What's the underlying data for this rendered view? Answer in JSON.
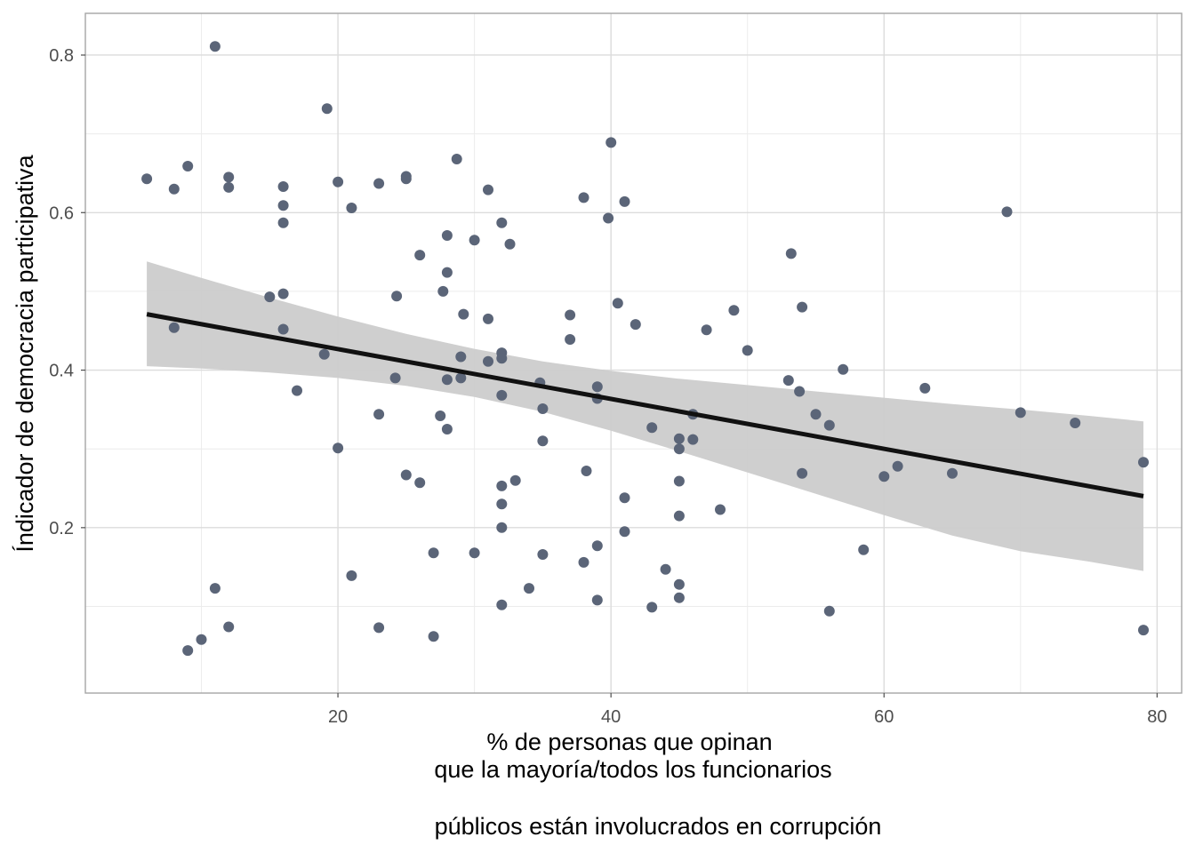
{
  "chart_data": {
    "type": "scatter",
    "title": "",
    "xlabel_lines": [
      "% de personas que opinan",
      "que la mayoría/todos  los funcionarios",
      "",
      "públicos están involucrados en corrupción"
    ],
    "ylabel": "Índicador de democracia participativa",
    "xlim": [
      1.5,
      81.8
    ],
    "ylim": [
      -0.01,
      0.853
    ],
    "x_major_ticks": [
      20,
      40,
      60,
      80
    ],
    "x_tick_labels": [
      "20",
      "40",
      "60",
      "80"
    ],
    "x_minor_ticks": [
      10,
      30,
      50,
      70
    ],
    "y_major_ticks": [
      0.2,
      0.4,
      0.6,
      0.8
    ],
    "y_tick_labels": [
      "0.2",
      "0.4",
      "0.6",
      "0.8"
    ],
    "y_minor_ticks": [
      0.1,
      0.3,
      0.5,
      0.7
    ],
    "grid": true,
    "colors": {
      "points": "#5b6578",
      "trend_line": "#111111",
      "confidence_band": "#cccccc",
      "grid": "#dcdcdc",
      "panel_border": "#a6a6a6"
    },
    "points": [
      {
        "x": 6,
        "y": 0.643
      },
      {
        "x": 8,
        "y": 0.63
      },
      {
        "x": 8,
        "y": 0.454
      },
      {
        "x": 9,
        "y": 0.659
      },
      {
        "x": 9,
        "y": 0.044
      },
      {
        "x": 10,
        "y": 0.058
      },
      {
        "x": 11,
        "y": 0.811
      },
      {
        "x": 11,
        "y": 0.123
      },
      {
        "x": 12,
        "y": 0.645
      },
      {
        "x": 12,
        "y": 0.632
      },
      {
        "x": 12,
        "y": 0.074
      },
      {
        "x": 15,
        "y": 0.493
      },
      {
        "x": 16,
        "y": 0.633
      },
      {
        "x": 16,
        "y": 0.609
      },
      {
        "x": 16,
        "y": 0.587
      },
      {
        "x": 16,
        "y": 0.497
      },
      {
        "x": 16,
        "y": 0.452
      },
      {
        "x": 17,
        "y": 0.374
      },
      {
        "x": 19,
        "y": 0.42
      },
      {
        "x": 19.2,
        "y": 0.732
      },
      {
        "x": 20,
        "y": 0.639
      },
      {
        "x": 20,
        "y": 0.301
      },
      {
        "x": 21,
        "y": 0.606
      },
      {
        "x": 21,
        "y": 0.139
      },
      {
        "x": 23,
        "y": 0.637
      },
      {
        "x": 23,
        "y": 0.344
      },
      {
        "x": 23,
        "y": 0.073
      },
      {
        "x": 24.2,
        "y": 0.39
      },
      {
        "x": 24.3,
        "y": 0.494
      },
      {
        "x": 25,
        "y": 0.646
      },
      {
        "x": 25,
        "y": 0.643
      },
      {
        "x": 25,
        "y": 0.267
      },
      {
        "x": 26,
        "y": 0.546
      },
      {
        "x": 26,
        "y": 0.257
      },
      {
        "x": 27,
        "y": 0.168
      },
      {
        "x": 27,
        "y": 0.062
      },
      {
        "x": 27.5,
        "y": 0.342
      },
      {
        "x": 27.7,
        "y": 0.5
      },
      {
        "x": 28,
        "y": 0.571
      },
      {
        "x": 28,
        "y": 0.524
      },
      {
        "x": 28,
        "y": 0.388
      },
      {
        "x": 28,
        "y": 0.325
      },
      {
        "x": 28.7,
        "y": 0.668
      },
      {
        "x": 29,
        "y": 0.417
      },
      {
        "x": 29,
        "y": 0.39
      },
      {
        "x": 29.2,
        "y": 0.471
      },
      {
        "x": 30,
        "y": 0.565
      },
      {
        "x": 30,
        "y": 0.168
      },
      {
        "x": 31,
        "y": 0.629
      },
      {
        "x": 31,
        "y": 0.465
      },
      {
        "x": 31,
        "y": 0.411
      },
      {
        "x": 32,
        "y": 0.587
      },
      {
        "x": 32,
        "y": 0.422
      },
      {
        "x": 32,
        "y": 0.415
      },
      {
        "x": 32,
        "y": 0.368
      },
      {
        "x": 32,
        "y": 0.253
      },
      {
        "x": 32,
        "y": 0.23
      },
      {
        "x": 32,
        "y": 0.2
      },
      {
        "x": 32,
        "y": 0.102
      },
      {
        "x": 32.6,
        "y": 0.56
      },
      {
        "x": 33,
        "y": 0.26
      },
      {
        "x": 34,
        "y": 0.123
      },
      {
        "x": 34.8,
        "y": 0.384
      },
      {
        "x": 35,
        "y": 0.351
      },
      {
        "x": 35,
        "y": 0.31
      },
      {
        "x": 35,
        "y": 0.166
      },
      {
        "x": 37,
        "y": 0.47
      },
      {
        "x": 37,
        "y": 0.439
      },
      {
        "x": 38,
        "y": 0.619
      },
      {
        "x": 38,
        "y": 0.156
      },
      {
        "x": 38.2,
        "y": 0.272
      },
      {
        "x": 39,
        "y": 0.379
      },
      {
        "x": 39,
        "y": 0.364
      },
      {
        "x": 39,
        "y": 0.177
      },
      {
        "x": 39,
        "y": 0.108
      },
      {
        "x": 39.8,
        "y": 0.593
      },
      {
        "x": 40,
        "y": 0.689
      },
      {
        "x": 40.5,
        "y": 0.485
      },
      {
        "x": 41,
        "y": 0.614
      },
      {
        "x": 41,
        "y": 0.238
      },
      {
        "x": 41,
        "y": 0.195
      },
      {
        "x": 41.8,
        "y": 0.458
      },
      {
        "x": 43,
        "y": 0.327
      },
      {
        "x": 43,
        "y": 0.099
      },
      {
        "x": 44,
        "y": 0.147
      },
      {
        "x": 45,
        "y": 0.313
      },
      {
        "x": 45,
        "y": 0.3
      },
      {
        "x": 45,
        "y": 0.259
      },
      {
        "x": 45,
        "y": 0.215
      },
      {
        "x": 45,
        "y": 0.128
      },
      {
        "x": 45,
        "y": 0.111
      },
      {
        "x": 46,
        "y": 0.344
      },
      {
        "x": 46,
        "y": 0.312
      },
      {
        "x": 47,
        "y": 0.451
      },
      {
        "x": 48,
        "y": 0.223
      },
      {
        "x": 49,
        "y": 0.476
      },
      {
        "x": 50,
        "y": 0.425
      },
      {
        "x": 53,
        "y": 0.387
      },
      {
        "x": 53.2,
        "y": 0.548
      },
      {
        "x": 53.8,
        "y": 0.373
      },
      {
        "x": 54,
        "y": 0.48
      },
      {
        "x": 54,
        "y": 0.269
      },
      {
        "x": 55,
        "y": 0.344
      },
      {
        "x": 56,
        "y": 0.33
      },
      {
        "x": 56,
        "y": 0.094
      },
      {
        "x": 57,
        "y": 0.401
      },
      {
        "x": 58.5,
        "y": 0.172
      },
      {
        "x": 60,
        "y": 0.265
      },
      {
        "x": 61,
        "y": 0.278
      },
      {
        "x": 63,
        "y": 0.377
      },
      {
        "x": 65,
        "y": 0.269
      },
      {
        "x": 69,
        "y": 0.601
      },
      {
        "x": 70,
        "y": 0.346
      },
      {
        "x": 74,
        "y": 0.333
      },
      {
        "x": 79,
        "y": 0.283
      },
      {
        "x": 79,
        "y": 0.07
      }
    ],
    "trend_line": {
      "x": [
        6,
        79
      ],
      "y": [
        0.471,
        0.24
      ]
    },
    "confidence_band": {
      "x": [
        6,
        10,
        15,
        20,
        25,
        30,
        35,
        40,
        45,
        50,
        55,
        60,
        65,
        70,
        75,
        79
      ],
      "upper": [
        0.538,
        0.517,
        0.492,
        0.468,
        0.446,
        0.427,
        0.411,
        0.399,
        0.389,
        0.381,
        0.373,
        0.365,
        0.357,
        0.35,
        0.342,
        0.335
      ],
      "lower": [
        0.405,
        0.402,
        0.397,
        0.39,
        0.38,
        0.366,
        0.347,
        0.323,
        0.297,
        0.27,
        0.243,
        0.216,
        0.19,
        0.17,
        0.157,
        0.145
      ]
    }
  }
}
